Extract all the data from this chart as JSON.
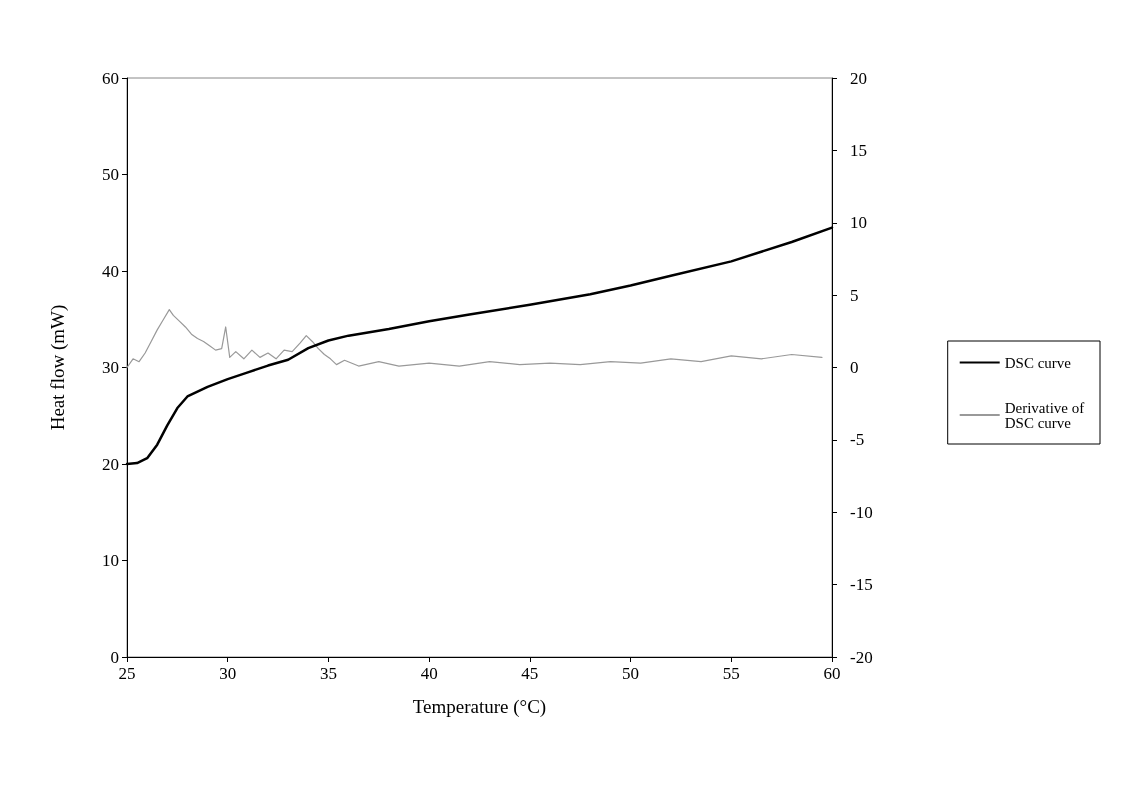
{
  "chart_data": {
    "type": "line",
    "xlabel": "Temperature (°C)",
    "ylabel": "Heat flow (mW)",
    "xlim": [
      25,
      60
    ],
    "xticks": [
      25,
      30,
      35,
      40,
      45,
      50,
      55,
      60
    ],
    "ylim": [
      0,
      60
    ],
    "yticks": [
      0,
      10,
      20,
      30,
      40,
      50,
      60
    ],
    "y2lim": [
      -20,
      20
    ],
    "y2ticks": [
      -20,
      -15,
      -10,
      -5,
      0,
      5,
      10,
      15,
      20
    ],
    "grid": false,
    "legend": "right",
    "marker": "none",
    "line_style": "solid",
    "series": [
      {
        "name": "DSC curve",
        "color": "#000000",
        "x": [
          25,
          25.5,
          26,
          26.5,
          27,
          27.5,
          28,
          29,
          30,
          31,
          32,
          33,
          34,
          35,
          36,
          38,
          40,
          42,
          45,
          48,
          50,
          52,
          55,
          58,
          60
        ],
        "values": [
          20,
          20.1,
          20.6,
          22,
          24,
          25.8,
          27,
          28,
          28.8,
          29.5,
          30.2,
          30.8,
          32,
          32.8,
          33.3,
          34,
          34.8,
          35.5,
          36.5,
          37.6,
          38.5,
          39.5,
          41,
          43,
          44.5
        ]
      },
      {
        "name": "Derivative of DSC curve",
        "color": "#999999",
        "axis": "y2",
        "x": [
          25,
          25.3,
          25.6,
          25.9,
          26.2,
          26.5,
          26.8,
          27.1,
          27.3,
          27.6,
          27.9,
          28.2,
          28.5,
          28.8,
          29.1,
          29.4,
          29.7,
          29.9,
          30.1,
          30.4,
          30.8,
          31.2,
          31.6,
          32,
          32.4,
          32.8,
          33.2,
          33.6,
          33.9,
          34.2,
          34.5,
          34.8,
          35.1,
          35.4,
          35.8,
          36.5,
          37.5,
          38.5,
          40,
          41.5,
          43,
          44.5,
          46,
          47.5,
          49,
          50.5,
          52,
          53.5,
          55,
          56.5,
          58,
          59.5
        ],
        "values": [
          0,
          0.6,
          0.4,
          1,
          1.8,
          2.6,
          3.3,
          4,
          3.6,
          3.2,
          2.8,
          2.3,
          2,
          1.8,
          1.5,
          1.2,
          1.3,
          2.8,
          0.7,
          1.1,
          0.6,
          1.2,
          0.7,
          1,
          0.6,
          1.2,
          1.1,
          1.7,
          2.2,
          1.8,
          1.3,
          0.9,
          0.6,
          0.2,
          0.5,
          0.1,
          0.4,
          0.1,
          0.3,
          0.1,
          0.4,
          0.2,
          0.3,
          0.2,
          0.4,
          0.3,
          0.6,
          0.4,
          0.8,
          0.6,
          0.9,
          0.7
        ]
      }
    ]
  }
}
